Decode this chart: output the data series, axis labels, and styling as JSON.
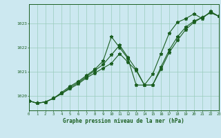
{
  "title": "Graphe pression niveau de la mer (hPa)",
  "bg_color": "#cce8f0",
  "grid_color": "#99ccbb",
  "line_color": "#1a5e20",
  "x_min": 0,
  "x_max": 23,
  "y_min": 1019.4,
  "y_max": 1023.8,
  "yticks": [
    1020,
    1021,
    1022,
    1023
  ],
  "xticks": [
    0,
    1,
    2,
    3,
    4,
    5,
    6,
    7,
    8,
    9,
    10,
    11,
    12,
    13,
    14,
    15,
    16,
    17,
    18,
    19,
    20,
    21,
    22,
    23
  ],
  "series1_x": [
    0,
    1,
    2,
    3,
    4,
    5,
    6,
    7,
    8,
    9,
    10,
    11,
    12,
    13,
    14,
    15,
    16,
    17,
    18,
    19,
    20,
    21,
    22,
    23
  ],
  "series1_y": [
    1019.8,
    1019.7,
    1019.75,
    1019.9,
    1020.15,
    1020.4,
    1020.6,
    1020.85,
    1021.1,
    1021.45,
    1022.45,
    1022.0,
    1021.55,
    1020.45,
    1020.45,
    1020.9,
    1021.75,
    1022.6,
    1023.05,
    1023.2,
    1023.4,
    1023.2,
    1023.5,
    1023.3
  ],
  "series2_x": [
    0,
    1,
    2,
    3,
    4,
    5,
    6,
    7,
    8,
    9,
    10,
    11,
    12,
    13,
    14,
    15,
    16,
    17,
    18,
    19,
    20,
    21,
    22,
    23
  ],
  "series2_y": [
    1019.8,
    1019.7,
    1019.75,
    1019.9,
    1020.1,
    1020.35,
    1020.55,
    1020.8,
    1021.05,
    1021.3,
    1021.7,
    1022.1,
    1021.6,
    1021.1,
    1020.45,
    1020.45,
    1021.1,
    1021.8,
    1022.3,
    1022.75,
    1023.05,
    1023.25,
    1023.45,
    1023.3
  ],
  "series3_x": [
    0,
    1,
    2,
    3,
    4,
    5,
    6,
    7,
    8,
    9,
    10,
    11,
    12,
    13,
    14,
    15,
    16,
    17,
    18,
    19,
    20,
    21,
    22,
    23
  ],
  "series3_y": [
    1019.8,
    1019.7,
    1019.75,
    1019.9,
    1020.1,
    1020.3,
    1020.5,
    1020.75,
    1020.95,
    1021.15,
    1021.35,
    1021.75,
    1021.4,
    1021.05,
    1020.45,
    1020.45,
    1021.2,
    1021.9,
    1022.45,
    1022.85,
    1023.1,
    1023.25,
    1023.45,
    1023.3
  ]
}
